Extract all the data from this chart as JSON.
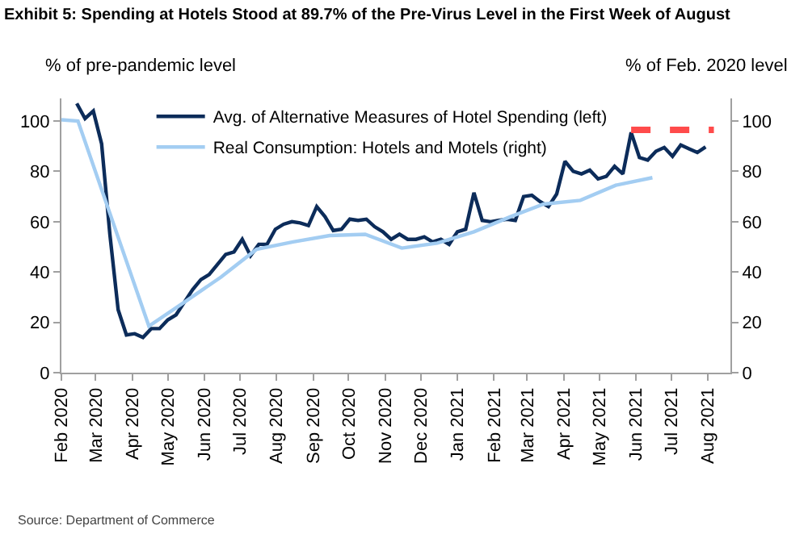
{
  "chart_data": {
    "type": "line",
    "title": "Exhibit 5: Spending at Hotels Stood at 89.7% of the Pre-Virus Level in the First Week of August",
    "ylabel": "% of pre-pandemic level",
    "y2label": "% of Feb. 2020 level",
    "annotations": [
      "Source: Department of Commerce"
    ],
    "series": [
      {
        "name": "Avg. of Alternative Measures of Hotel Spending (left)",
        "color": "#0c2c5a",
        "x": [
          "2020-02-14",
          "2020-02-21",
          "2020-02-28",
          "2020-03-06",
          "2020-03-13",
          "2020-03-20",
          "2020-03-27",
          "2020-04-03",
          "2020-04-10",
          "2020-04-17",
          "2020-04-24",
          "2020-05-01",
          "2020-05-08",
          "2020-05-15",
          "2020-05-22",
          "2020-05-29",
          "2020-06-05",
          "2020-06-12",
          "2020-06-19",
          "2020-06-26",
          "2020-07-03",
          "2020-07-10",
          "2020-07-17",
          "2020-07-24",
          "2020-07-31",
          "2020-08-07",
          "2020-08-14",
          "2020-08-21",
          "2020-08-28",
          "2020-09-04",
          "2020-09-11",
          "2020-09-18",
          "2020-09-25",
          "2020-10-02",
          "2020-10-09",
          "2020-10-16",
          "2020-10-23",
          "2020-10-30",
          "2020-11-06",
          "2020-11-13",
          "2020-11-20",
          "2020-11-27",
          "2020-12-04",
          "2020-12-11",
          "2020-12-18",
          "2020-12-25",
          "2021-01-01",
          "2021-01-08",
          "2021-01-15",
          "2021-01-22",
          "2021-01-29",
          "2021-02-05",
          "2021-02-12",
          "2021-02-19",
          "2021-02-26",
          "2021-03-05",
          "2021-03-12",
          "2021-03-19",
          "2021-03-26",
          "2021-04-02",
          "2021-04-09",
          "2021-04-16",
          "2021-04-23",
          "2021-04-30",
          "2021-05-07",
          "2021-05-14",
          "2021-05-21",
          "2021-05-28",
          "2021-06-04",
          "2021-06-11",
          "2021-06-18",
          "2021-06-25",
          "2021-07-02",
          "2021-07-09",
          "2021-07-16",
          "2021-07-23",
          "2021-07-30"
        ],
        "values": [
          107,
          101,
          104,
          91,
          55,
          25,
          15,
          15.5,
          14,
          17.5,
          17.5,
          21,
          23,
          28,
          33,
          37,
          39,
          43,
          47,
          48,
          53,
          46.5,
          51,
          51,
          57,
          59,
          60,
          59.5,
          58.5,
          66,
          62,
          56.5,
          57,
          61,
          60.5,
          61,
          58,
          56,
          53,
          55,
          53,
          53,
          54,
          52,
          53,
          51,
          56,
          57,
          71.5,
          60.5,
          60,
          60.5,
          61,
          60.5,
          70,
          70.5,
          68,
          66,
          71,
          84,
          80,
          79,
          80.5,
          77,
          78,
          82,
          79,
          95.5,
          85.5,
          84.5,
          88,
          89.5,
          86,
          90.5,
          89,
          87.5,
          89.7
        ]
      },
      {
        "name": "Real Consumption: Hotels and Motels (right)",
        "color": "#a3cdf2",
        "axis": "y2",
        "x": [
          "2020-02-01",
          "2020-02-15",
          "2020-04-15",
          "2020-05-15",
          "2020-06-15",
          "2020-07-15",
          "2020-08-15",
          "2020-09-15",
          "2020-10-15",
          "2020-11-15",
          "2020-12-15",
          "2021-01-15",
          "2021-02-15",
          "2021-03-15",
          "2021-04-15",
          "2021-05-15",
          "2021-06-15"
        ],
        "values": [
          100.5,
          100,
          18.5,
          28,
          38,
          49,
          52,
          54.5,
          55,
          49.5,
          51.5,
          56,
          62,
          67,
          68.5,
          74.5,
          77.5
        ]
      },
      {
        "color": "#ff4b4b",
        "line_style": "dashed",
        "x": [
          "2021-05-28",
          "2021-08-06"
        ],
        "values": [
          96.5,
          96.5
        ]
      }
    ],
    "xlim": [
      "2020-02-01",
      "2021-08-20"
    ],
    "xticks": [
      {
        "value": "2020-02-01",
        "label": "Feb 2020"
      },
      {
        "value": "2020-03-01",
        "label": "Mar 2020"
      },
      {
        "value": "2020-04-01",
        "label": "Apr 2020"
      },
      {
        "value": "2020-05-01",
        "label": "May 2020"
      },
      {
        "value": "2020-06-01",
        "label": "Jun 2020"
      },
      {
        "value": "2020-07-01",
        "label": "Jul 2020"
      },
      {
        "value": "2020-08-01",
        "label": "Aug 2020"
      },
      {
        "value": "2020-09-01",
        "label": "Sep 2020"
      },
      {
        "value": "2020-10-01",
        "label": "Oct 2020"
      },
      {
        "value": "2020-11-01",
        "label": "Nov 2020"
      },
      {
        "value": "2020-12-01",
        "label": "Dec 2020"
      },
      {
        "value": "2021-01-01",
        "label": "Jan 2021"
      },
      {
        "value": "2021-02-01",
        "label": "Feb 2021"
      },
      {
        "value": "2021-03-01",
        "label": "Mar 2021"
      },
      {
        "value": "2021-04-01",
        "label": "Apr 2021"
      },
      {
        "value": "2021-05-01",
        "label": "May 2021"
      },
      {
        "value": "2021-06-01",
        "label": "Jun 2021"
      },
      {
        "value": "2021-07-01",
        "label": "Jul 2021"
      },
      {
        "value": "2021-08-01",
        "label": "Aug 2021"
      }
    ],
    "ylim": [
      0,
      109
    ],
    "yticks": [
      0,
      20,
      40,
      60,
      80,
      100
    ],
    "y2lim": [
      0,
      109
    ],
    "y2ticks": [
      0,
      20,
      40,
      60,
      80,
      100
    ],
    "legend": "top",
    "marker": "none",
    "line_style": "solid"
  }
}
